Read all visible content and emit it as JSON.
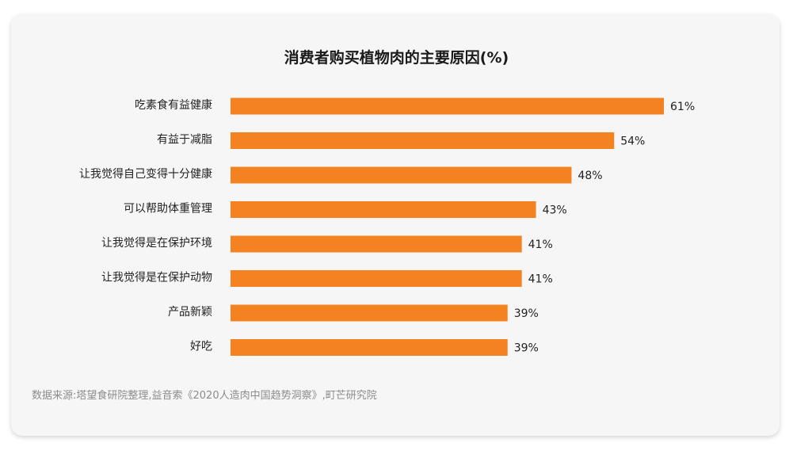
{
  "chart_data": {
    "type": "bar",
    "orientation": "horizontal",
    "title": "消费者购买植物肉的主要原因(%)",
    "categories": [
      "吃素食有益健康",
      "有益于减脂",
      "让我觉得自己变得十分健康",
      "可以帮助体重管理",
      "让我觉得是在保护环境",
      "让我觉得是在保护动物",
      "产品新颖",
      "好吃"
    ],
    "values": [
      61,
      54,
      48,
      43,
      41,
      41,
      39,
      39
    ],
    "value_suffix": "%",
    "xlim": [
      0,
      61
    ],
    "grid": false,
    "legend": "none",
    "bar_color": "#f58220"
  },
  "source": "数据来源:塔望食研院整理,益音索《2020人造肉中国趋势洞察》,町芒研究院",
  "colors": {
    "card_background": "#f6f6f6",
    "text": "#222222",
    "source_text": "#8c8c8c"
  }
}
